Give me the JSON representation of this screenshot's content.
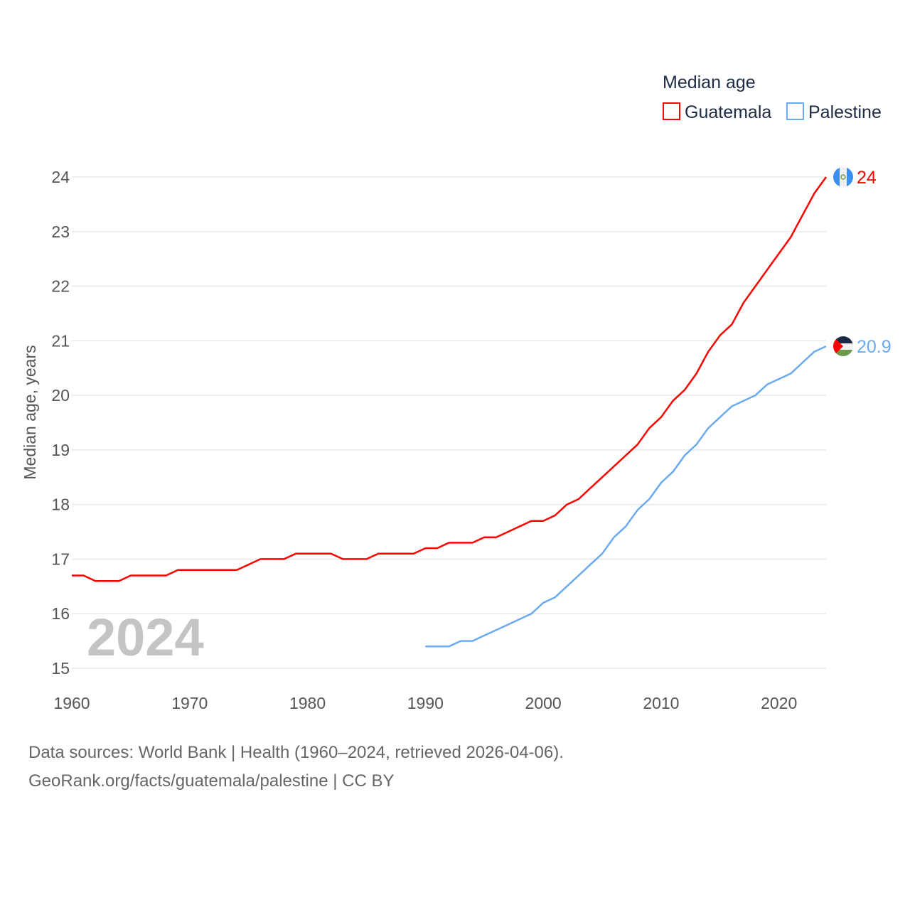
{
  "chart_data": {
    "type": "line",
    "title": "",
    "xlabel": "",
    "ylabel": "Median age, years",
    "xlim": [
      1960,
      2024
    ],
    "ylim": [
      15,
      24
    ],
    "x_ticks": [
      "1960",
      "1970",
      "1980",
      "1990",
      "2000",
      "2010",
      "2020"
    ],
    "y_ticks": [
      "15",
      "16",
      "17",
      "18",
      "19",
      "20",
      "21",
      "22",
      "23",
      "24"
    ],
    "grid": true,
    "year_watermark": "2024",
    "legend": {
      "title": "Median age",
      "placement": "top-right"
    },
    "series": [
      {
        "name": "Guatemala",
        "color": "#ff0000",
        "end_label": "24",
        "start_year": 1960,
        "values": [
          16.7,
          16.7,
          16.6,
          16.6,
          16.6,
          16.7,
          16.7,
          16.7,
          16.7,
          16.8,
          16.8,
          16.8,
          16.8,
          16.8,
          16.8,
          16.9,
          17.0,
          17.0,
          17.0,
          17.1,
          17.1,
          17.1,
          17.1,
          17.0,
          17.0,
          17.0,
          17.1,
          17.1,
          17.1,
          17.1,
          17.2,
          17.2,
          17.3,
          17.3,
          17.3,
          17.4,
          17.4,
          17.5,
          17.6,
          17.7,
          17.7,
          17.8,
          18.0,
          18.1,
          18.3,
          18.5,
          18.7,
          18.9,
          19.1,
          19.4,
          19.6,
          19.9,
          20.1,
          20.4,
          20.8,
          21.1,
          21.3,
          21.7,
          22.0,
          22.3,
          22.6,
          22.9,
          23.3,
          23.7,
          24.0
        ]
      },
      {
        "name": "Palestine",
        "color": "#6aaaf0",
        "end_label": "20.9",
        "start_year": 1990,
        "values": [
          15.4,
          15.4,
          15.4,
          15.5,
          15.5,
          15.6,
          15.7,
          15.8,
          15.9,
          16.0,
          16.2,
          16.3,
          16.5,
          16.7,
          16.9,
          17.1,
          17.4,
          17.6,
          17.9,
          18.1,
          18.4,
          18.6,
          18.9,
          19.1,
          19.4,
          19.6,
          19.8,
          19.9,
          20.0,
          20.2,
          20.3,
          20.4,
          20.6,
          20.8,
          20.9
        ]
      }
    ]
  },
  "footer": {
    "line1": "Data sources: World Bank | Health (1960–2024, retrieved 2026-04-06).",
    "line2": "GeoRank.org/facts/guatemala/palestine | CC BY"
  }
}
